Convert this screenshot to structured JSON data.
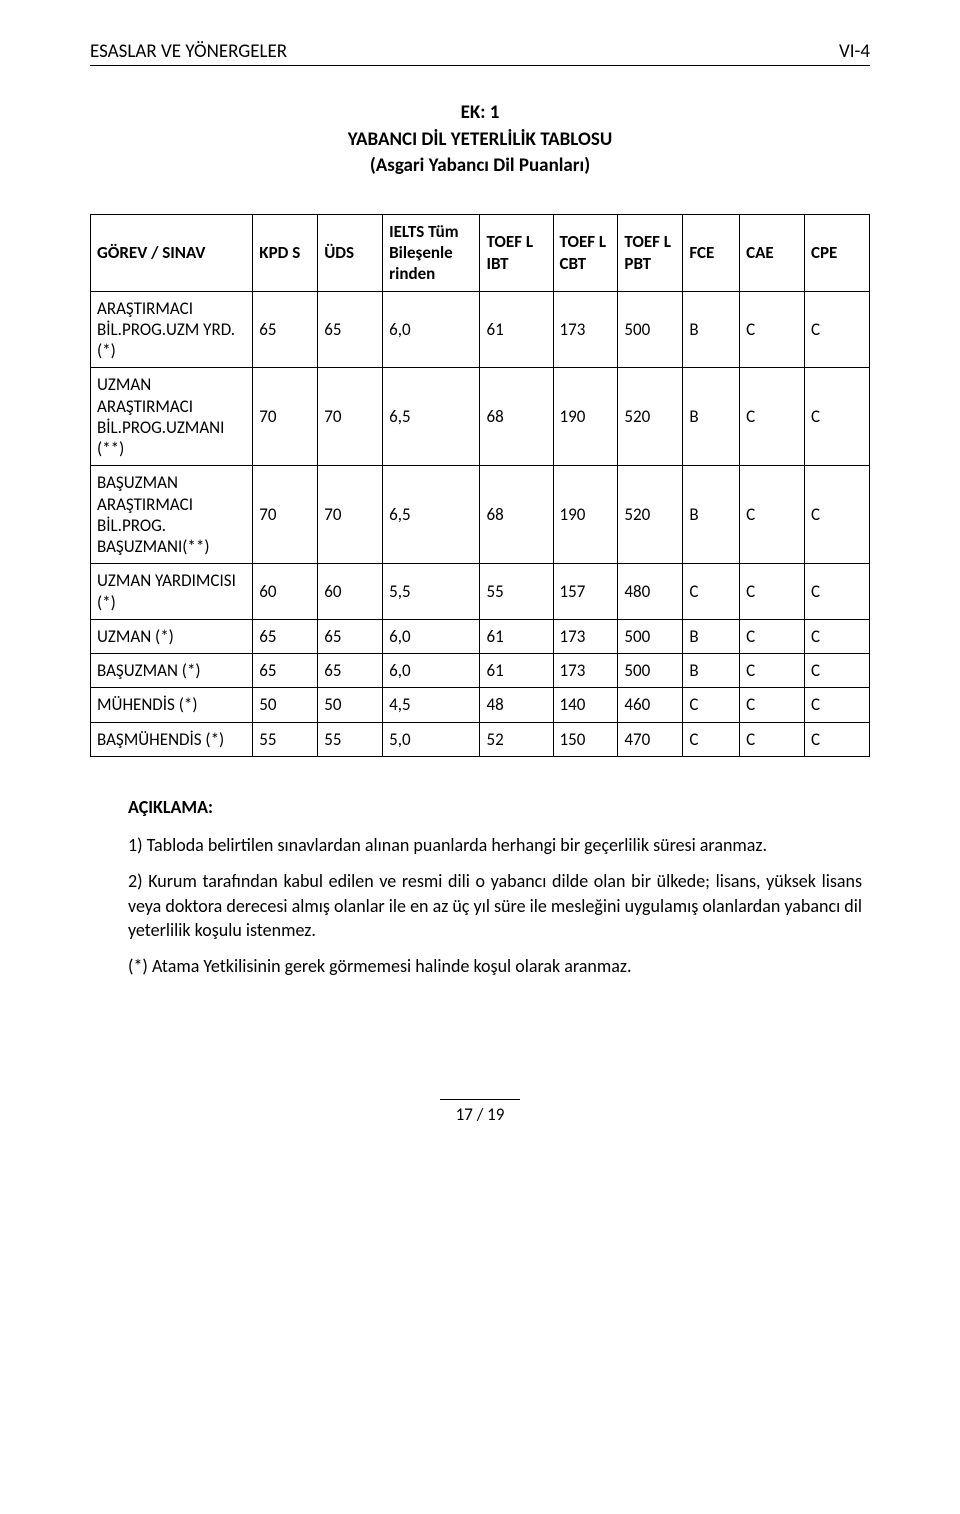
{
  "header": {
    "left": "ESASLAR VE YÖNERGELER",
    "right": "VI-4"
  },
  "title": {
    "line1": "EK: 1",
    "line2": "YABANCI DİL YETERLİLİK TABLOSU",
    "line3": "(Asgari Yabancı Dil Puanları)"
  },
  "table": {
    "columns": [
      "GÖREV / SINAV",
      "KPD\nS",
      "ÜDS",
      "IELTS\nTüm\nBileşenle\nrinden",
      "TOEF\nL IBT",
      "TOEF\nL\nCBT",
      "TOEF\nL\nPBT",
      "FCE",
      "CAE",
      "CPE"
    ],
    "rows": [
      [
        "ARAŞTIRMACI BİL.PROG.UZM YRD. (*)",
        "65",
        "65",
        "6,0",
        "61",
        "173",
        "500",
        "B",
        "C",
        "C"
      ],
      [
        "UZMAN ARAŞTIRMACI BİL.PROG.UZMANI (**)",
        "70",
        "70",
        "6,5",
        "68",
        "190",
        "520",
        "B",
        "C",
        "C"
      ],
      [
        "BAŞUZMAN ARAŞTIRMACI BİL.PROG. BAŞUZMANI(**)",
        "70",
        "70",
        "6,5",
        "68",
        "190",
        "520",
        "B",
        "C",
        "C"
      ],
      [
        "UZMAN YARDIMCISI (*)",
        "60",
        "60",
        "5,5",
        "55",
        "157",
        "480",
        "C",
        "C",
        "C"
      ],
      [
        "UZMAN (*)",
        "65",
        "65",
        "6,0",
        "61",
        "173",
        "500",
        "B",
        "C",
        "C"
      ],
      [
        "BAŞUZMAN  (*)",
        "65",
        "65",
        "6,0",
        "61",
        "173",
        "500",
        "B",
        "C",
        "C"
      ],
      [
        "MÜHENDİS (*)",
        "50",
        "50",
        "4,5",
        "48",
        "140",
        "460",
        "C",
        "C",
        "C"
      ],
      [
        "BAŞMÜHENDİS (*)",
        "55",
        "55",
        "5,0",
        "52",
        "150",
        "470",
        "C",
        "C",
        "C"
      ]
    ]
  },
  "explain": {
    "heading": "AÇIKLAMA:",
    "p1": "1) Tabloda belirtilen sınavlardan alınan puanlarda herhangi bir geçerlilik süresi aranmaz.",
    "p2": "2) Kurum tarafından kabul edilen ve resmi dili o yabancı dilde olan bir ülkede; lisans, yüksek lisans veya doktora derecesi almış olanlar ile en az üç yıl süre ile mesleğini uygulamış olanlardan yabancı dil yeterlilik koşulu istenmez.",
    "p3": "(*) Atama Yetkilisinin gerek görmemesi halinde koşul olarak aranmaz."
  },
  "footer": {
    "page": "17 / 19"
  }
}
